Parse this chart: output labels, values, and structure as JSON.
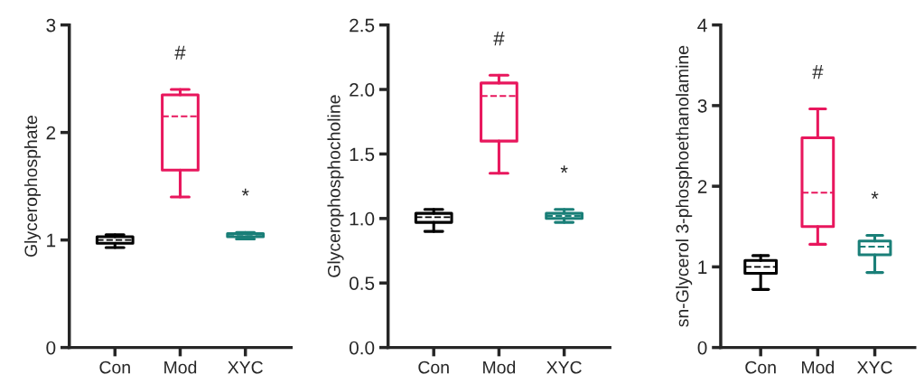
{
  "chart_data": [
    {
      "type": "box",
      "ylabel": "Glycerophosphate",
      "categories": [
        "Con",
        "Mod",
        "XYC"
      ],
      "colors": [
        "#000000",
        "#e8175d",
        "#1a7f78"
      ],
      "ylim": [
        0,
        3
      ],
      "yticks": [
        0,
        1,
        2,
        3
      ],
      "boxes": [
        {
          "low": 0.93,
          "q1": 0.97,
          "median": 1.0,
          "q3": 1.03,
          "high": 1.05
        },
        {
          "low": 1.4,
          "q1": 1.65,
          "median": 2.15,
          "q3": 2.35,
          "high": 2.4
        },
        {
          "low": 1.01,
          "q1": 1.03,
          "median": 1.05,
          "q3": 1.06,
          "high": 1.07
        }
      ],
      "annotations": [
        "#",
        "*"
      ]
    },
    {
      "type": "box",
      "ylabel": "Glycerophosphocholine",
      "categories": [
        "Con",
        "Mod",
        "XYC"
      ],
      "colors": [
        "#000000",
        "#e8175d",
        "#1a7f78"
      ],
      "ylim": [
        0,
        2.5
      ],
      "yticks": [
        {
          "value": 0,
          "label": "0.0"
        },
        0.5,
        {
          "value": 1,
          "label": "1.0"
        },
        1.5,
        {
          "value": 2,
          "label": "2.0"
        },
        2.5
      ],
      "boxes": [
        {
          "low": 0.9,
          "q1": 0.97,
          "median": 1.01,
          "q3": 1.04,
          "high": 1.07
        },
        {
          "low": 1.35,
          "q1": 1.6,
          "median": 1.95,
          "q3": 2.05,
          "high": 2.11
        },
        {
          "low": 0.97,
          "q1": 1.0,
          "median": 1.02,
          "q3": 1.04,
          "high": 1.07
        }
      ],
      "annotations": [
        "#",
        "*"
      ]
    },
    {
      "type": "box",
      "ylabel": "sn-Glycerol 3-phosphoethanolamine",
      "categories": [
        "Con",
        "Mod",
        "XYC"
      ],
      "colors": [
        "#000000",
        "#e8175d",
        "#1a7f78"
      ],
      "ylim": [
        0,
        4
      ],
      "yticks": [
        0,
        1,
        2,
        3,
        4
      ],
      "boxes": [
        {
          "low": 0.72,
          "q1": 0.92,
          "median": 1.0,
          "q3": 1.08,
          "high": 1.14
        },
        {
          "low": 1.28,
          "q1": 1.5,
          "median": 1.92,
          "q3": 2.6,
          "high": 2.96
        },
        {
          "low": 0.93,
          "q1": 1.15,
          "median": 1.25,
          "q3": 1.32,
          "high": 1.39
        }
      ],
      "annotations": [
        "#",
        "*"
      ]
    }
  ]
}
